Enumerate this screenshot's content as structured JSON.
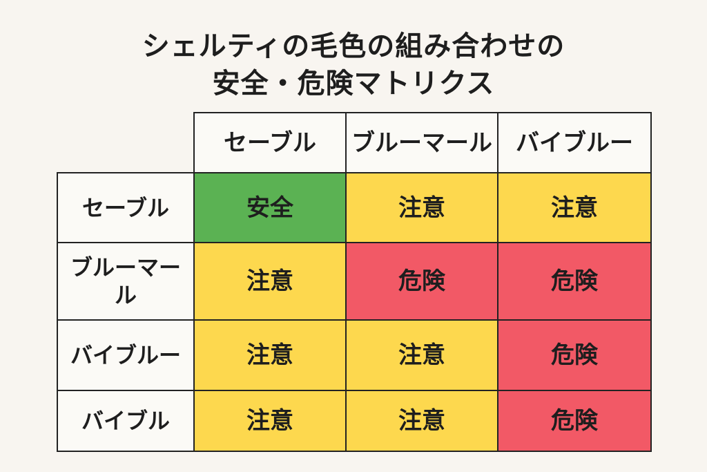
{
  "title": {
    "line1": "シェルティの毛色の組み合わせの",
    "line2": "安全・危険マトリクス"
  },
  "colors": {
    "safe": "#5bb253",
    "caution": "#fdd84e",
    "danger": "#f25966",
    "header_bg": "#fbfaf6",
    "page_bg": "#f8f5f0"
  },
  "chart_data": {
    "type": "table",
    "columns": [
      "セーブル",
      "ブルーマール",
      "バイブルー"
    ],
    "rows": [
      {
        "label": "セーブル",
        "cells": [
          "安全",
          "注意",
          "注意"
        ]
      },
      {
        "label": "ブルーマール",
        "cells": [
          "注意",
          "危険",
          "危険"
        ]
      },
      {
        "label": "バイブルー",
        "cells": [
          "注意",
          "注意",
          "危険"
        ]
      },
      {
        "label": "バイブル",
        "cells": [
          "注意",
          "注意",
          "危険"
        ]
      }
    ],
    "level_colors": {
      "安全": "safe",
      "注意": "caution",
      "危険": "danger"
    }
  }
}
